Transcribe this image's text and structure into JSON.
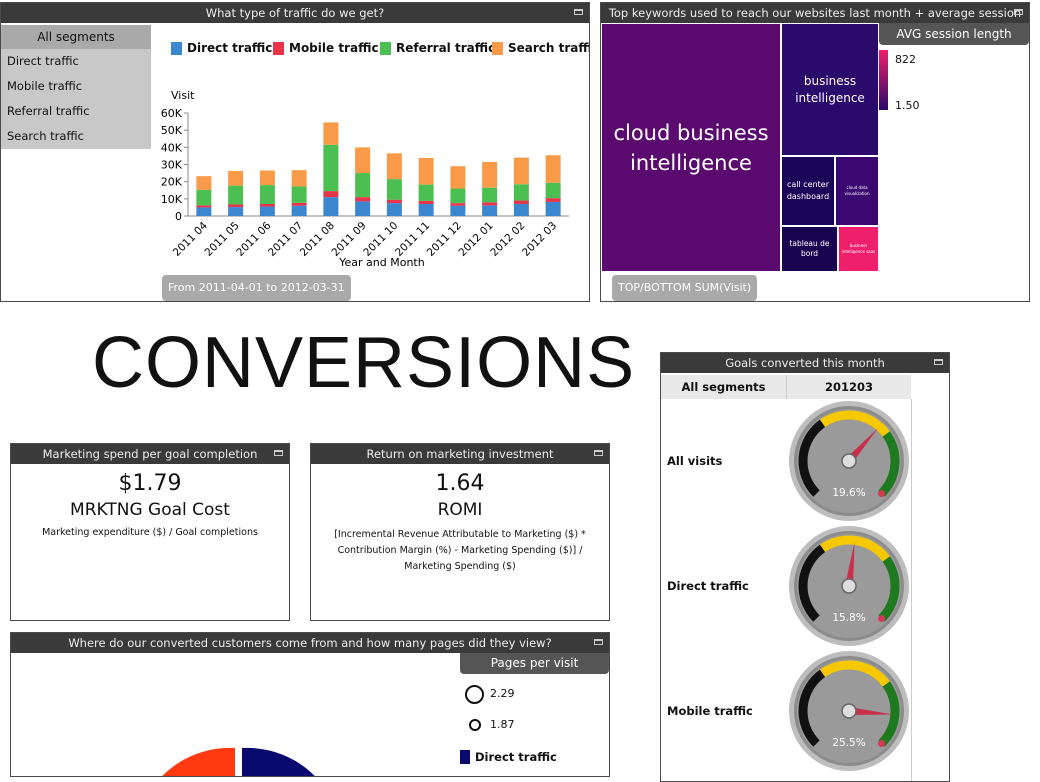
{
  "traffic": {
    "title": "What type of traffic do we get?",
    "segments_header": "All segments",
    "segments": [
      "Direct traffic",
      "Mobile traffic",
      "Referral traffic",
      "Search traffic"
    ],
    "date_range": "From 2011-04-01 to 2012-03-31"
  },
  "chart_data": {
    "type": "bar",
    "stacked": true,
    "categories": [
      "2011 04",
      "2011 05",
      "2011 06",
      "2011 07",
      "2011 08",
      "2011 09",
      "2011 10",
      "2011 11",
      "2011 12",
      "2012 01",
      "2012 02",
      "2012 03"
    ],
    "series": [
      {
        "name": "Direct traffic",
        "color": "#3a87d0",
        "values": [
          5000,
          5200,
          5500,
          6000,
          11000,
          8500,
          7500,
          7000,
          6000,
          6200,
          7000,
          8200
        ]
      },
      {
        "name": "Mobile traffic",
        "color": "#e8334a",
        "values": [
          1200,
          1500,
          1500,
          1700,
          3500,
          2500,
          2000,
          1800,
          1500,
          1800,
          2000,
          2200
        ]
      },
      {
        "name": "Referral traffic",
        "color": "#4cbf52",
        "values": [
          9000,
          11000,
          11000,
          9500,
          27000,
          14000,
          12000,
          9500,
          8500,
          8500,
          9500,
          9000
        ]
      },
      {
        "name": "Search traffic",
        "color": "#f99a48",
        "values": [
          8000,
          8500,
          8500,
          9500,
          13000,
          15000,
          15000,
          15500,
          13000,
          15000,
          15500,
          16000
        ]
      }
    ],
    "ylabel": "Visit",
    "xlabel": "Year and Month",
    "yticks": [
      "0",
      "10K",
      "20K",
      "30K",
      "40K",
      "50K",
      "60K"
    ],
    "ylim": [
      0,
      60000
    ]
  },
  "keywords": {
    "title": "Top keywords used to reach our websites last month + average session",
    "legend_title": "AVG session length",
    "legend_max": "822",
    "legend_min": "1.50",
    "footer": "TOP/BOTTOM SUM(Visit)",
    "tiles": {
      "t1": "cloud business intelligence",
      "t2": "business intelligence",
      "t3": "call center dashboard",
      "t4": "cloud data visualization",
      "t5": "tableau de bord",
      "t6": "business intelligence saas"
    },
    "colors": {
      "c1": "#5a0a6e",
      "c2": "#2a0a6a",
      "c3": "#1a0458",
      "c4": "#3a0870",
      "c5": "#180450",
      "c6": "#ef1f6c"
    }
  },
  "conversions_title": "CONVERSIONS",
  "spend": {
    "title": "Marketing spend per goal completion",
    "value": "$1.79",
    "label": "MRKTNG Goal Cost",
    "formula": "Marketing expenditure ($) / Goal completions"
  },
  "romi": {
    "title": "Return on marketing investment",
    "value": "1.64",
    "label": "ROMI",
    "formula": "[Incremental Revenue Attributable to Marketing ($) * Contribution Margin (%) - Marketing Spending ($)] / Marketing Spending ($)"
  },
  "goals": {
    "title": "Goals converted this month",
    "col1": "All segments",
    "col2": "201203",
    "rows": [
      {
        "label": "All visits",
        "value": "19.6%",
        "fraction": 0.196
      },
      {
        "label": "Direct traffic",
        "value": "15.8%",
        "fraction": 0.158
      },
      {
        "label": "Mobile traffic",
        "value": "25.5%",
        "fraction": 0.255
      }
    ]
  },
  "where": {
    "title": "Where do our converted customers come from and how many pages did they view?",
    "legend_title": "Pages per visit",
    "size_1": "2.29",
    "size_2": "1.87",
    "series_label": "Direct traffic",
    "series_color": "#0a0a6e"
  }
}
